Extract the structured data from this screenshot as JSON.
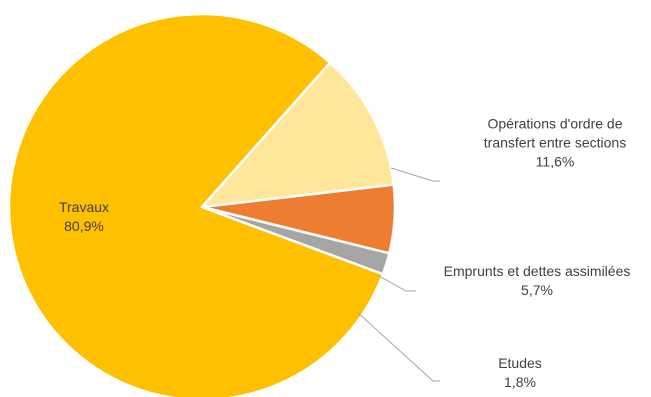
{
  "chart_data": {
    "type": "pie",
    "title": "",
    "slices": [
      {
        "name": "Travaux",
        "label_lines": [
          "Travaux"
        ],
        "value_label": "80,9%",
        "value": 80.9,
        "color": "#FFC000"
      },
      {
        "name": "Opérations d'ordre de transfert entre sections",
        "label_lines": [
          "Opérations d'ordre de",
          "transfert entre sections"
        ],
        "value_label": "11,6%",
        "value": 11.6,
        "color": "#FFE699"
      },
      {
        "name": "Emprunts et dettes assimilées",
        "label_lines": [
          "Emprunts et dettes assimilées"
        ],
        "value_label": "5,7%",
        "value": 5.7,
        "color": "#ED7D31"
      },
      {
        "name": "Etudes",
        "label_lines": [
          "Etudes"
        ],
        "value_label": "1,8%",
        "value": 1.8,
        "color": "#A5A5A5"
      }
    ],
    "label_color": "#404040",
    "leader_line_color": "#A6A6A6"
  }
}
